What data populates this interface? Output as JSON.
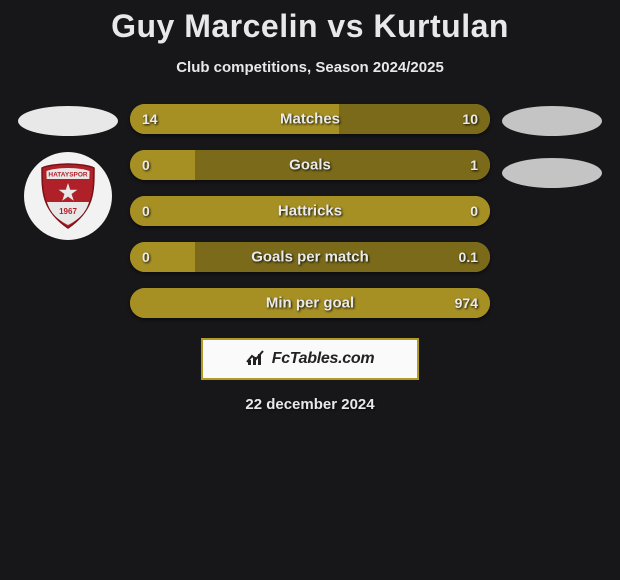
{
  "title": "Guy Marcelin vs Kurtulan",
  "subtitle": "Club competitions, Season 2024/2025",
  "date": "22 december 2024",
  "footer_brand": "FcTables.com",
  "colors": {
    "background": "#17171a",
    "bar_left": "#a69024",
    "bar_right": "#7a6a1a",
    "text": "#e8e8ea",
    "footer_bg": "#fafafa",
    "footer_border": "#b09a28",
    "badge_primary": "#b02028",
    "badge_secondary": "#e0e0e0"
  },
  "bars": [
    {
      "label": "Matches",
      "left": "14",
      "right": "10",
      "left_pct": 58,
      "right_pct": 42
    },
    {
      "label": "Goals",
      "left": "0",
      "right": "1",
      "left_pct": 18,
      "right_pct": 82
    },
    {
      "label": "Hattricks",
      "left": "0",
      "right": "0",
      "left_pct": 100,
      "right_pct": 0
    },
    {
      "label": "Goals per match",
      "left": "0",
      "right": "0.1",
      "left_pct": 18,
      "right_pct": 82
    },
    {
      "label": "Min per goal",
      "left": "",
      "right": "974",
      "left_pct": 100,
      "right_pct": 0
    }
  ],
  "badge_text": "HATAYSPOR",
  "badge_year": "1967"
}
